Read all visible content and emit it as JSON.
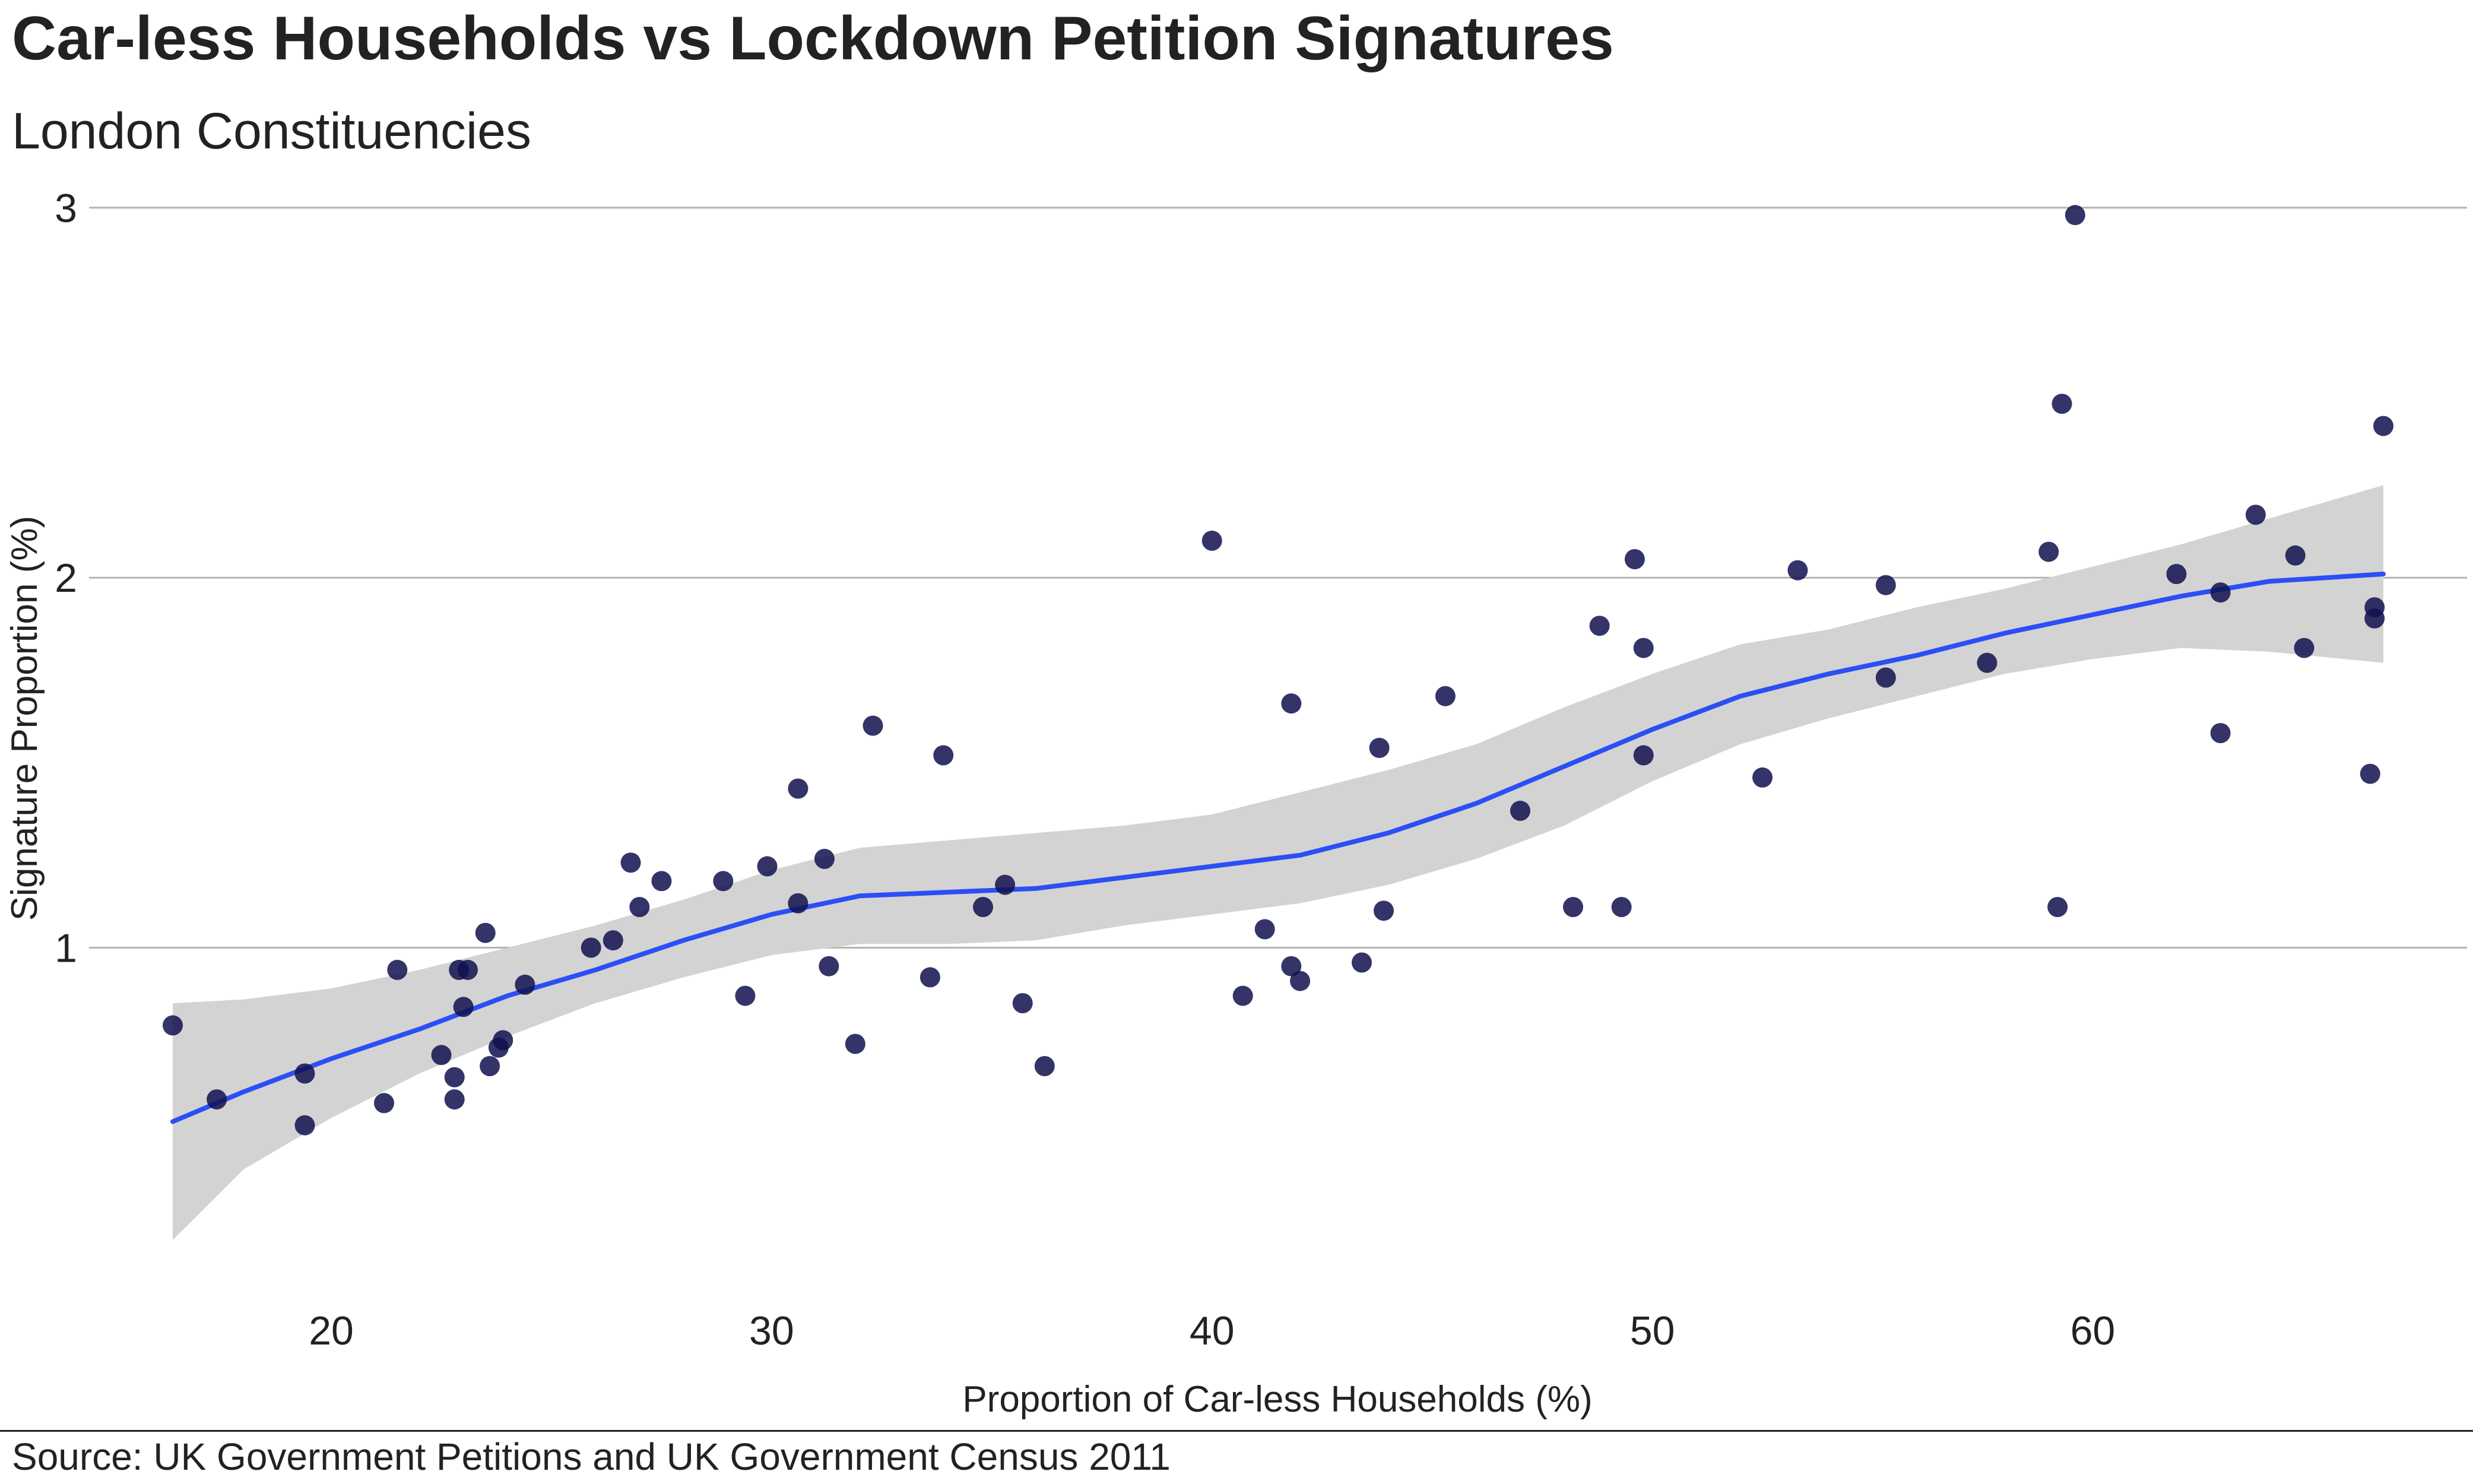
{
  "chart_data": {
    "type": "scatter",
    "title": "Car-less Households vs Lockdown Petition Signatures",
    "subtitle": "London Constituencies",
    "xlabel": "Proportion of Car-less Households (%)",
    "ylabel": "Signature Proportion (%)",
    "source": "Source: UK Government Petitions and UK Government Census 2011",
    "xlim": [
      14.5,
      68.5
    ],
    "ylim": [
      0.08,
      3.08
    ],
    "x_ticks": [
      20,
      30,
      40,
      50,
      60
    ],
    "y_ticks": [
      1,
      2,
      3
    ],
    "grid": "horizontal",
    "point_color": "#10104f",
    "trend_color": "#2b4ff5",
    "band_color": "#d3d3d3",
    "points": [
      {
        "x": 16.4,
        "y": 0.79
      },
      {
        "x": 17.4,
        "y": 0.59
      },
      {
        "x": 19.4,
        "y": 0.66
      },
      {
        "x": 19.4,
        "y": 0.52
      },
      {
        "x": 21.2,
        "y": 0.58
      },
      {
        "x": 21.5,
        "y": 0.94
      },
      {
        "x": 22.5,
        "y": 0.71
      },
      {
        "x": 22.8,
        "y": 0.65
      },
      {
        "x": 22.8,
        "y": 0.59
      },
      {
        "x": 22.9,
        "y": 0.94
      },
      {
        "x": 23.0,
        "y": 0.84
      },
      {
        "x": 23.1,
        "y": 0.94
      },
      {
        "x": 23.5,
        "y": 1.04
      },
      {
        "x": 23.6,
        "y": 0.68
      },
      {
        "x": 23.8,
        "y": 0.73
      },
      {
        "x": 23.9,
        "y": 0.75
      },
      {
        "x": 24.4,
        "y": 0.9
      },
      {
        "x": 25.9,
        "y": 1.0
      },
      {
        "x": 26.4,
        "y": 1.02
      },
      {
        "x": 26.8,
        "y": 1.23
      },
      {
        "x": 27.0,
        "y": 1.11
      },
      {
        "x": 27.5,
        "y": 1.18
      },
      {
        "x": 28.9,
        "y": 1.18
      },
      {
        "x": 29.4,
        "y": 0.87
      },
      {
        "x": 29.9,
        "y": 1.22
      },
      {
        "x": 30.6,
        "y": 1.12
      },
      {
        "x": 30.6,
        "y": 1.43
      },
      {
        "x": 31.2,
        "y": 1.24
      },
      {
        "x": 31.3,
        "y": 0.95
      },
      {
        "x": 31.9,
        "y": 0.74
      },
      {
        "x": 32.3,
        "y": 1.6
      },
      {
        "x": 33.6,
        "y": 0.92
      },
      {
        "x": 33.9,
        "y": 1.52
      },
      {
        "x": 34.8,
        "y": 1.11
      },
      {
        "x": 35.3,
        "y": 1.17
      },
      {
        "x": 35.7,
        "y": 0.85
      },
      {
        "x": 36.2,
        "y": 0.68
      },
      {
        "x": 40.0,
        "y": 2.1
      },
      {
        "x": 40.7,
        "y": 0.87
      },
      {
        "x": 41.2,
        "y": 1.05
      },
      {
        "x": 41.8,
        "y": 1.66
      },
      {
        "x": 41.8,
        "y": 0.95
      },
      {
        "x": 42.0,
        "y": 0.91
      },
      {
        "x": 43.4,
        "y": 0.96
      },
      {
        "x": 43.8,
        "y": 1.54
      },
      {
        "x": 43.9,
        "y": 1.1
      },
      {
        "x": 45.3,
        "y": 1.68
      },
      {
        "x": 47.0,
        "y": 1.37
      },
      {
        "x": 48.2,
        "y": 1.11
      },
      {
        "x": 48.8,
        "y": 1.87
      },
      {
        "x": 49.3,
        "y": 1.11
      },
      {
        "x": 49.6,
        "y": 2.05
      },
      {
        "x": 49.8,
        "y": 1.81
      },
      {
        "x": 49.8,
        "y": 1.52
      },
      {
        "x": 52.5,
        "y": 1.46
      },
      {
        "x": 53.3,
        "y": 2.02
      },
      {
        "x": 55.3,
        "y": 1.98
      },
      {
        "x": 55.3,
        "y": 1.73
      },
      {
        "x": 57.6,
        "y": 1.77
      },
      {
        "x": 59.0,
        "y": 2.07
      },
      {
        "x": 59.2,
        "y": 1.11
      },
      {
        "x": 59.3,
        "y": 2.47
      },
      {
        "x": 59.6,
        "y": 2.98
      },
      {
        "x": 61.9,
        "y": 2.01
      },
      {
        "x": 62.9,
        "y": 1.96
      },
      {
        "x": 62.9,
        "y": 1.58
      },
      {
        "x": 63.7,
        "y": 2.17
      },
      {
        "x": 64.6,
        "y": 2.06
      },
      {
        "x": 64.8,
        "y": 1.81
      },
      {
        "x": 66.3,
        "y": 1.47
      },
      {
        "x": 66.4,
        "y": 1.92
      },
      {
        "x": 66.4,
        "y": 1.89
      },
      {
        "x": 66.6,
        "y": 2.41
      }
    ],
    "trend": {
      "x": [
        16.4,
        18,
        20,
        22,
        24,
        26,
        28,
        30,
        32,
        34,
        36,
        38,
        40,
        42,
        44,
        46,
        48,
        50,
        52,
        54,
        56,
        58,
        60,
        62,
        64,
        66.6
      ],
      "y": [
        0.53,
        0.61,
        0.7,
        0.78,
        0.87,
        0.94,
        1.02,
        1.09,
        1.14,
        1.15,
        1.16,
        1.19,
        1.22,
        1.25,
        1.31,
        1.39,
        1.49,
        1.59,
        1.68,
        1.74,
        1.79,
        1.85,
        1.9,
        1.95,
        1.99,
        2.01
      ],
      "lower": [
        0.21,
        0.4,
        0.54,
        0.66,
        0.76,
        0.85,
        0.92,
        0.98,
        1.01,
        1.01,
        1.02,
        1.06,
        1.09,
        1.12,
        1.17,
        1.24,
        1.33,
        1.45,
        1.55,
        1.62,
        1.68,
        1.74,
        1.78,
        1.81,
        1.8,
        1.77
      ],
      "upper": [
        0.85,
        0.86,
        0.89,
        0.94,
        1.0,
        1.06,
        1.13,
        1.21,
        1.27,
        1.29,
        1.31,
        1.33,
        1.36,
        1.42,
        1.48,
        1.55,
        1.65,
        1.74,
        1.82,
        1.86,
        1.92,
        1.97,
        2.03,
        2.09,
        2.16,
        2.25
      ]
    }
  }
}
